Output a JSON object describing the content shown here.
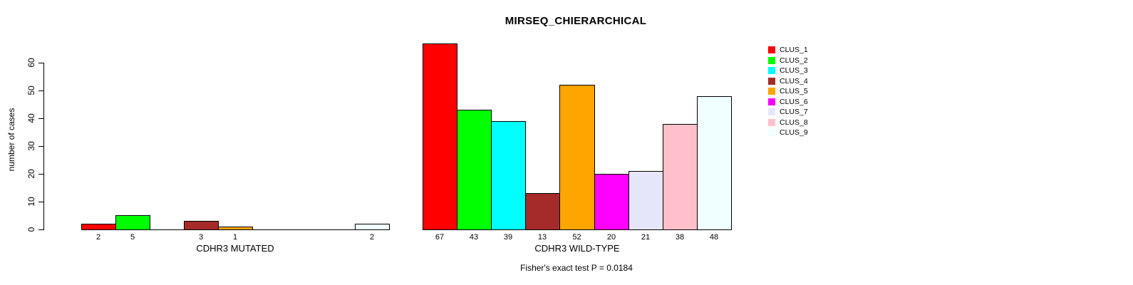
{
  "chart_data": {
    "type": "bar",
    "title": "MIRSEQ_CHIERARCHICAL",
    "ylabel": "number of cases",
    "ylim": [
      0,
      60
    ],
    "yticks": [
      0,
      10,
      20,
      30,
      40,
      50,
      60
    ],
    "grid": false,
    "legend_position": "right",
    "background_color": "#ffffff",
    "bar_border_color": "#000000",
    "clusters": [
      {
        "name": "CLUS_1",
        "color": "#FF0000"
      },
      {
        "name": "CLUS_2",
        "color": "#00FF00"
      },
      {
        "name": "CLUS_3",
        "color": "#00FFFF"
      },
      {
        "name": "CLUS_4",
        "color": "#A52A2A"
      },
      {
        "name": "CLUS_5",
        "color": "#FFA500"
      },
      {
        "name": "CLUS_6",
        "color": "#FF00FF"
      },
      {
        "name": "CLUS_7",
        "color": "#E6E6FA"
      },
      {
        "name": "CLUS_8",
        "color": "#FFC0CB"
      },
      {
        "name": "CLUS_9",
        "color": "#F0FFFF"
      }
    ],
    "groups": [
      {
        "label": "CDHR3 MUTATED",
        "values": [
          2,
          5,
          0,
          3,
          1,
          0,
          0,
          0,
          2
        ]
      },
      {
        "label": "CDHR3 WILD-TYPE",
        "values": [
          67,
          43,
          39,
          13,
          52,
          20,
          21,
          38,
          48
        ]
      }
    ],
    "footnote": "Fisher's exact test P = 0.0184"
  }
}
